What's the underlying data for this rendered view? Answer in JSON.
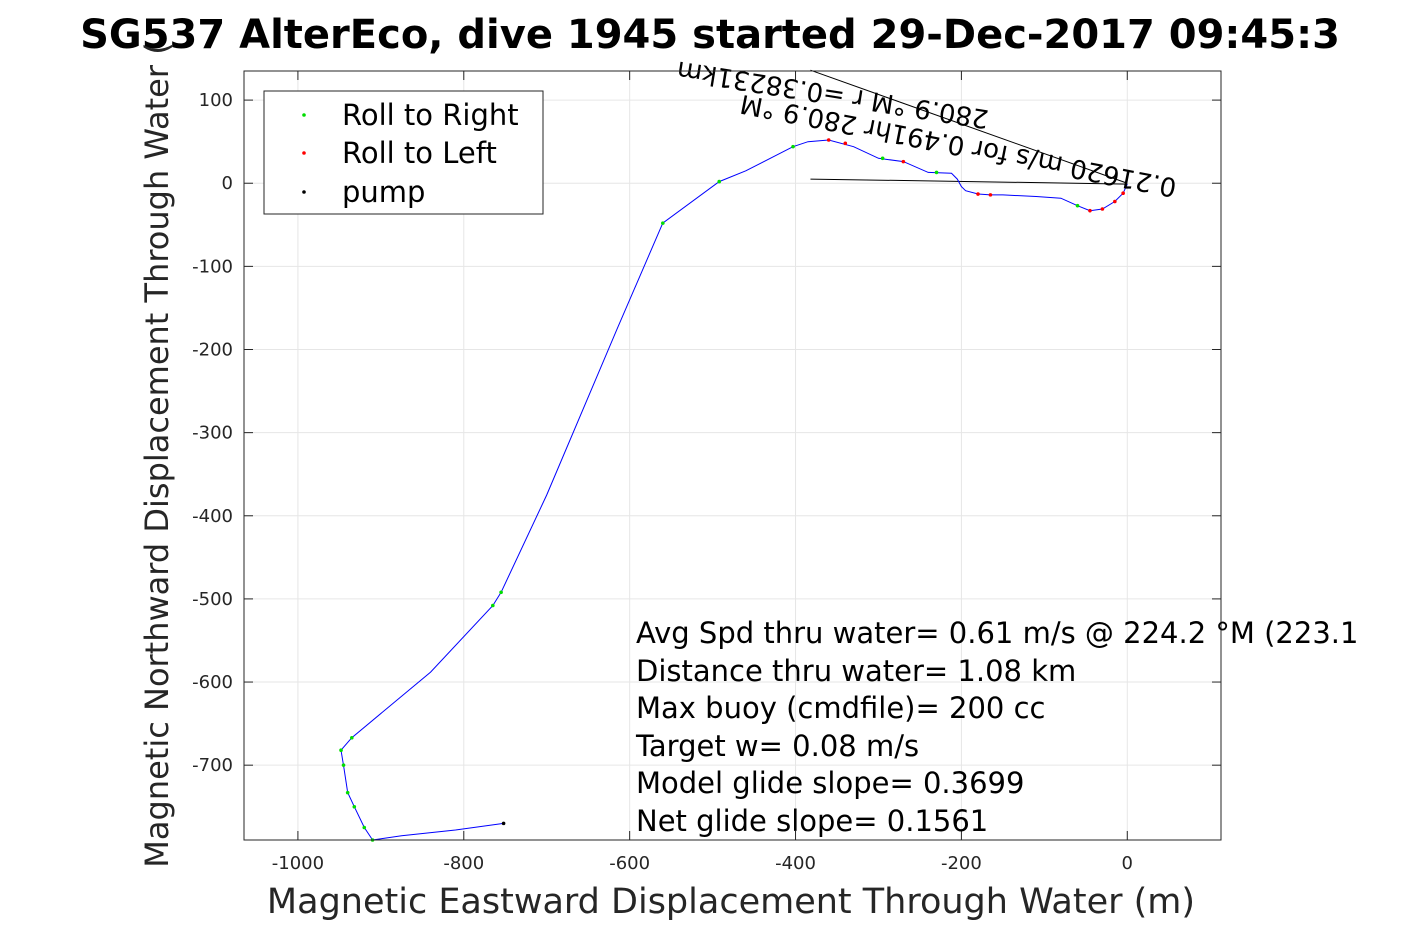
{
  "chart_data": {
    "type": "line",
    "title": "SG537 AlterEco, dive 1945 started 29-Dec-2017 09:45:3",
    "xlabel": "Magnetic Eastward Displacement Through Water (m)",
    "ylabel": "Magnetic Northward Displacement Through Water (",
    "xlim": [
      -1065,
      113
    ],
    "ylim": [
      -790,
      135
    ],
    "xticks": [
      -1000,
      -800,
      -600,
      -400,
      -200,
      0
    ],
    "yticks": [
      100,
      0,
      -100,
      -200,
      -300,
      -400,
      -500,
      -600,
      -700
    ],
    "xtick_labels": [
      "-1000",
      "-800",
      "-600",
      "-400",
      "-200",
      "0"
    ],
    "ytick_labels": [
      "100",
      "0",
      "-100",
      "-200",
      "-300",
      "-400",
      "-500",
      "-600",
      "-700"
    ],
    "grid": true,
    "legend": {
      "placement": "top-left",
      "entries": [
        {
          "label": "Roll to Right",
          "color": "#00dd00"
        },
        {
          "label": "Roll to Left",
          "color": "#ff0000"
        },
        {
          "label": "pump",
          "color": "#000000"
        }
      ]
    },
    "path_color": "#0000ff",
    "track": [
      [
        0,
        -1
      ],
      [
        -5,
        -12
      ],
      [
        -15,
        -22
      ],
      [
        -30,
        -31
      ],
      [
        -45,
        -33
      ],
      [
        -60,
        -27
      ],
      [
        -80,
        -18
      ],
      [
        -110,
        -16
      ],
      [
        -150,
        -14
      ],
      [
        -165,
        -14
      ],
      [
        -180,
        -13
      ],
      [
        -195,
        -9
      ],
      [
        -200,
        -4
      ],
      [
        -205,
        5
      ],
      [
        -212,
        12
      ],
      [
        -240,
        13
      ],
      [
        -270,
        26
      ],
      [
        -300,
        30
      ],
      [
        -330,
        44
      ],
      [
        -360,
        52
      ],
      [
        -385,
        50
      ],
      [
        -403,
        44
      ],
      [
        -460,
        15
      ],
      [
        -492,
        2
      ],
      [
        -560,
        -48
      ],
      [
        -615,
        -175
      ],
      [
        -700,
        -375
      ],
      [
        -755,
        -492
      ],
      [
        -765,
        -508
      ],
      [
        -840,
        -588
      ],
      [
        -935,
        -667
      ],
      [
        -948,
        -682
      ],
      [
        -945,
        -700
      ],
      [
        -940,
        -733
      ],
      [
        -932,
        -750
      ],
      [
        -920,
        -775
      ],
      [
        -910,
        -790
      ],
      [
        -875,
        -785
      ],
      [
        -810,
        -778
      ],
      [
        -752,
        -770
      ]
    ],
    "roll_right_points": [
      [
        -403,
        44
      ],
      [
        -492,
        2
      ],
      [
        -560,
        -48
      ],
      [
        -755,
        -492
      ],
      [
        -765,
        -508
      ],
      [
        -935,
        -667
      ],
      [
        -948,
        -682
      ],
      [
        -945,
        -700
      ],
      [
        -940,
        -733
      ],
      [
        -932,
        -750
      ],
      [
        -920,
        -775
      ],
      [
        -910,
        -790
      ],
      [
        -295,
        30
      ],
      [
        -230,
        13
      ],
      [
        -60,
        -27
      ]
    ],
    "roll_left_points": [
      [
        -5,
        -12
      ],
      [
        -15,
        -22
      ],
      [
        -30,
        -31
      ],
      [
        -45,
        -33
      ],
      [
        -165,
        -14
      ],
      [
        -180,
        -13
      ],
      [
        -270,
        26
      ],
      [
        -340,
        48
      ],
      [
        -360,
        52
      ]
    ],
    "pump_points": [
      [
        -752,
        -770
      ]
    ],
    "heading_lines": [
      {
        "x": [
          -382,
          0
        ],
        "y": [
          136,
          0
        ],
        "color": "#000000"
      },
      {
        "x": [
          -382,
          0
        ],
        "y": [
          5,
          -1
        ],
        "color": "#000000"
      }
    ],
    "annotations": [
      "Avg Spd thru water=  0.61 m/s @ 224.2 °M (223.1",
      "Distance thru water=  1.08 km",
      "Max buoy (cmdfile)= 200 cc",
      "Target w= 0.08 m/s",
      "Model glide slope= 0.3699",
      "Net glide slope= 0.1561"
    ],
    "heading_labels": [
      "280.9 °M r =0.38231km",
      "0.21620 m/s for 0.491hr 280.9 °M"
    ]
  }
}
